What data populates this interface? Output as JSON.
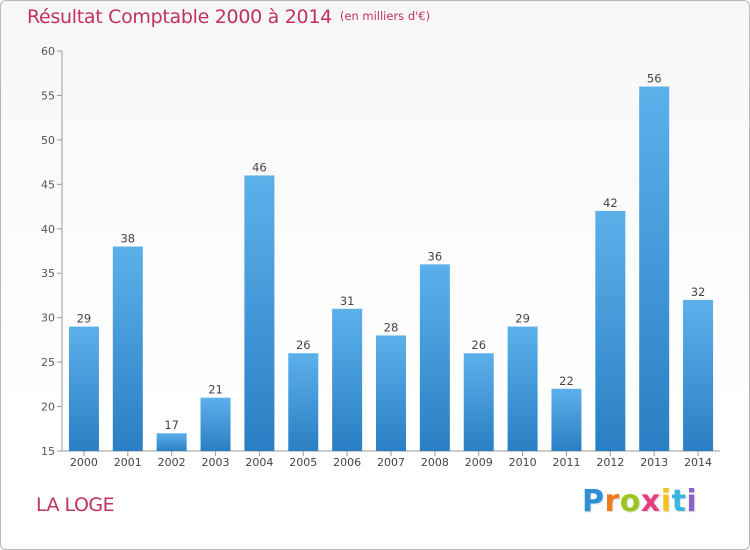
{
  "header": {
    "title": "Résultat Comptable 2000 à 2014",
    "unit": "(en milliers d'€)"
  },
  "footer": {
    "location": "LA LOGE",
    "brand": "Proxiti"
  },
  "colors": {
    "text_accent": "#c2305e",
    "bar_top": "#5cb0ea",
    "bar_bottom": "#2a7fc4"
  },
  "chart_data": {
    "type": "bar",
    "title": "Résultat Comptable 2000 à 2014",
    "subtitle": "(en milliers d'€)",
    "categories": [
      "2000",
      "2001",
      "2002",
      "2003",
      "2004",
      "2005",
      "2006",
      "2007",
      "2008",
      "2009",
      "2010",
      "2011",
      "2012",
      "2013",
      "2014"
    ],
    "values": [
      29,
      38,
      17,
      21,
      46,
      26,
      31,
      28,
      36,
      26,
      29,
      22,
      42,
      56,
      32
    ],
    "ylim": [
      15,
      60
    ],
    "yticks": [
      15,
      20,
      25,
      30,
      35,
      40,
      45,
      50,
      55,
      60
    ],
    "grid": false,
    "legend": "none"
  }
}
